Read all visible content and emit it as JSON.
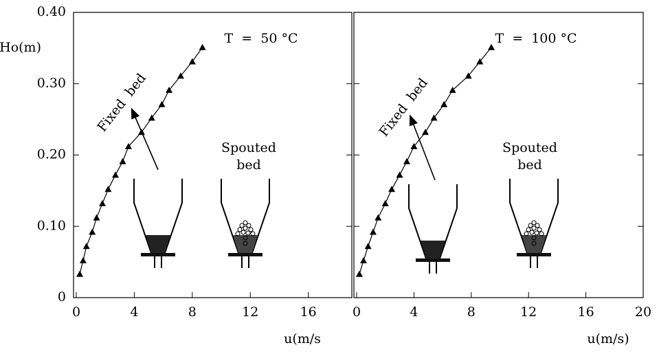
{
  "chart_data": [
    {
      "type": "line",
      "title": "T  =  50 °C",
      "x_label": "u(m/s",
      "y_label": "Ho(m)",
      "annotations": [
        "Fixed  bed",
        "Spouted",
        "bed"
      ],
      "series": [
        {
          "color": "#000000",
          "x": [
            0.24,
            0.47,
            0.7,
            1.1,
            1.4,
            1.8,
            2.2,
            2.7,
            3.2,
            3.6,
            4.5,
            5.2,
            5.9,
            6.4,
            7.2,
            8.0,
            8.7
          ],
          "values": [
            0.033,
            0.052,
            0.072,
            0.092,
            0.112,
            0.132,
            0.152,
            0.172,
            0.191,
            0.212,
            0.232,
            0.252,
            0.271,
            0.291,
            0.311,
            0.331,
            0.351
          ]
        }
      ],
      "xlim": [
        0,
        19
      ],
      "xticks": [
        0,
        4,
        8,
        12,
        16
      ],
      "ylim": [
        0,
        0.4
      ],
      "yticks": [
        0,
        {
          "value": 0.1,
          "label": "0.10"
        },
        {
          "value": 0.2,
          "label": "0.20"
        },
        {
          "value": 0.3,
          "label": "0.30"
        },
        {
          "value": 0.4,
          "label": "0.40"
        }
      ]
    },
    {
      "type": "line",
      "title": "T  =  100 °C",
      "x_label": "u(m/s)",
      "annotations": [
        "Fixed  bed",
        "Spouted",
        "bed"
      ],
      "series": [
        {
          "color": "#000000",
          "x": [
            0.19,
            0.48,
            0.8,
            1.15,
            1.5,
            2.0,
            2.45,
            3.0,
            3.5,
            4.0,
            4.8,
            5.4,
            6.1,
            6.7,
            7.8,
            8.6,
            9.4
          ],
          "values": [
            0.033,
            0.052,
            0.072,
            0.092,
            0.112,
            0.132,
            0.152,
            0.172,
            0.191,
            0.212,
            0.232,
            0.252,
            0.271,
            0.291,
            0.311,
            0.331,
            0.351
          ]
        }
      ],
      "xlim": [
        0,
        20
      ],
      "xticks": [
        0,
        4,
        8,
        12,
        16,
        20
      ],
      "ylim": [
        0,
        0.4
      ],
      "yticks": [
        0,
        0.1,
        0.2,
        0.3,
        0.4
      ]
    }
  ]
}
